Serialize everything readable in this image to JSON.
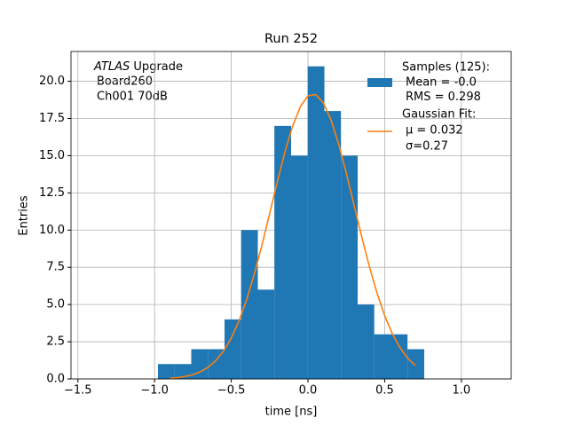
{
  "chart_data": {
    "type": "histogram",
    "title": "Run 252",
    "xlabel": "time [ns]",
    "ylabel": "Entries",
    "annotation": [
      "ATLAS",
      "Upgrade",
      "Board260",
      "Ch001 70dB"
    ],
    "name": "Samples (125):",
    "stats": [
      "Mean = -0.0",
      "RMS = 0.298"
    ],
    "color": "#1f77b4",
    "bins": [
      -0.978,
      -0.87,
      -0.761,
      -0.653,
      -0.544,
      -0.436,
      -0.327,
      -0.219,
      -0.11,
      -0.002,
      0.107,
      0.215,
      0.324,
      0.432,
      0.541,
      0.649,
      0.758
    ],
    "values": [
      1,
      1,
      2,
      2,
      4,
      10,
      6,
      17,
      15,
      21,
      18,
      15,
      5,
      3,
      3,
      2
    ],
    "fit": {
      "type": "line",
      "name": "Gaussian Fit:",
      "params": [
        "μ = 0.032",
        "σ=0.27"
      ],
      "color": "#ff7f0e",
      "x": [
        -0.9,
        -0.85,
        -0.8,
        -0.75,
        -0.7,
        -0.65,
        -0.6,
        -0.55,
        -0.5,
        -0.45,
        -0.4,
        -0.35,
        -0.3,
        -0.25,
        -0.2,
        -0.15,
        -0.1,
        -0.05,
        0.0,
        0.05,
        0.1,
        0.15,
        0.2,
        0.25,
        0.3,
        0.35,
        0.4,
        0.45,
        0.5,
        0.55,
        0.6,
        0.65,
        0.7
      ],
      "y": [
        0.05,
        0.09,
        0.17,
        0.29,
        0.49,
        0.79,
        1.24,
        1.88,
        2.75,
        3.89,
        5.32,
        7.04,
        8.99,
        11.1,
        13.24,
        15.26,
        16.99,
        18.29,
        19.02,
        19.11,
        18.55,
        17.41,
        15.78,
        13.82,
        11.7,
        9.57,
        7.56,
        5.78,
        4.26,
        3.04,
        2.1,
        1.4,
        0.9
      ]
    },
    "xlim": [
      -1.545,
      1.325
    ],
    "ylim": [
      0,
      22
    ],
    "xticks": [
      {
        "value": -1.5,
        "label": "−1.5"
      },
      {
        "value": -1.0,
        "label": "−1.0"
      },
      {
        "value": -0.5,
        "label": "−0.5"
      },
      {
        "value": 0,
        "label": "0.0"
      },
      0.5,
      {
        "value": 1,
        "label": "1.0"
      }
    ],
    "yticks": [
      {
        "value": 0,
        "label": "0.0"
      },
      2.5,
      {
        "value": 5,
        "label": "5.0"
      },
      7.5,
      {
        "value": 10,
        "label": "10.0"
      },
      12.5,
      {
        "value": 15,
        "label": "15.0"
      },
      17.5,
      {
        "value": 20,
        "label": "20.0"
      }
    ],
    "grid": true
  }
}
